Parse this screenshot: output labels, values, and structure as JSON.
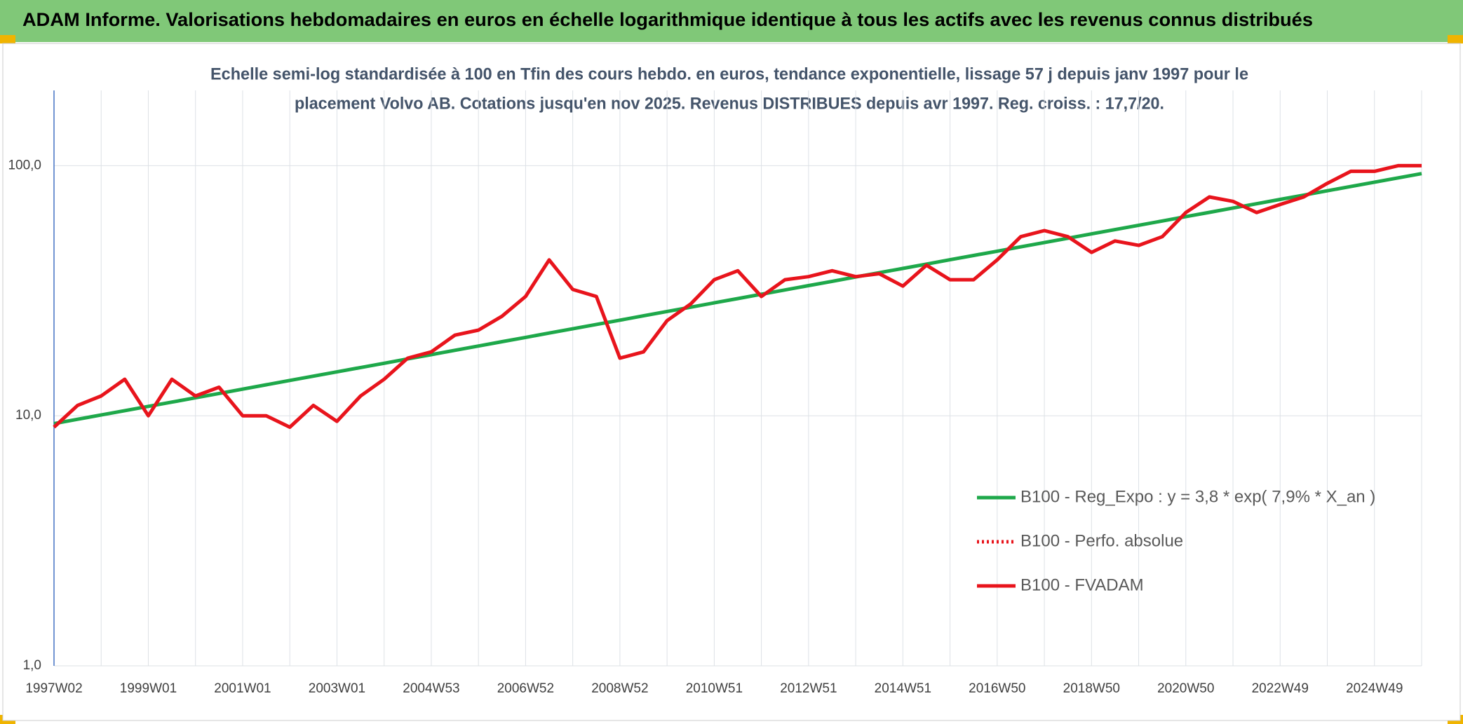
{
  "chart_data": {
    "type": "line",
    "title": "ADAM Informe. Valorisations hebdomadaires en euros en échelle logarithmique identique à tous les actifs avec les revenus connus distribués",
    "subtitle": [
      "Echelle semi-log standardisée à 100 en Tfin des cours hebdo. en euros, tendance exponentielle, lissage 57 j depuis janv 1997 pour le",
      "placement Volvo AB. Cotations jusqu'en nov 2025. Revenus DISTRIBUES depuis avr 1997. Reg. croiss. : 17,7/20."
    ],
    "categories": [
      "1997W02",
      null,
      null,
      null,
      "1999W01",
      null,
      null,
      null,
      "2001W01",
      null,
      null,
      null,
      "2003W01",
      null,
      null,
      null,
      "2004W53",
      null,
      null,
      null,
      "2006W52",
      null,
      null,
      null,
      "2008W52",
      null,
      null,
      null,
      "2010W51",
      null,
      null,
      null,
      "2012W51",
      null,
      null,
      null,
      "2014W51",
      null,
      null,
      null,
      "2016W50",
      null,
      null,
      null,
      "2018W50",
      null,
      null,
      null,
      "2020W50",
      null,
      null,
      null,
      "2022W49",
      null,
      null,
      null,
      "2024W49",
      null,
      null
    ],
    "series": [
      {
        "name": "B100 - Reg_Expo : y = 3,8 * exp( 7,9% *  X_an )",
        "color": "#1ea84a",
        "style": "solid",
        "values": [
          9.3,
          9.68,
          10.07,
          10.48,
          10.9,
          11.34,
          11.8,
          12.28,
          12.78,
          13.3,
          13.84,
          14.4,
          14.98,
          15.59,
          16.22,
          16.88,
          17.56,
          18.27,
          19.01,
          19.78,
          20.58,
          21.41,
          22.28,
          23.18,
          24.12,
          25.1,
          26.12,
          27.18,
          28.28,
          29.42,
          30.61,
          31.85,
          33.14,
          34.48,
          35.88,
          37.33,
          38.84,
          40.41,
          42.05,
          43.75,
          45.52,
          47.36,
          49.28,
          51.28,
          53.36,
          55.52,
          57.77,
          60.11,
          62.54,
          65.07,
          67.71,
          70.45,
          73.3,
          76.27,
          79.36,
          82.57,
          85.91,
          89.39,
          93.0
        ]
      },
      {
        "name": "B100 - Perfo. absolue",
        "color": "#e8141c",
        "style": "dotted",
        "values": [
          9,
          11,
          12,
          14,
          10,
          14,
          12,
          13,
          10,
          10,
          9,
          11,
          9.5,
          12,
          14,
          17,
          18,
          21,
          22,
          25,
          30,
          42,
          32,
          30,
          17,
          18,
          24,
          28,
          35,
          38,
          30,
          35,
          36,
          38,
          36,
          37,
          33,
          40,
          35,
          35,
          42,
          52,
          55,
          52,
          45,
          50,
          48,
          52,
          65,
          75,
          72,
          65,
          70,
          75,
          85,
          95,
          95,
          100,
          100
        ]
      },
      {
        "name": "B100 - FVADAM",
        "color": "#e8141c",
        "style": "solid",
        "values": [
          9,
          11,
          12,
          14,
          10,
          14,
          12,
          13,
          10,
          10,
          9,
          11,
          9.5,
          12,
          14,
          17,
          18,
          21,
          22,
          25,
          30,
          42,
          32,
          30,
          17,
          18,
          24,
          28,
          35,
          38,
          30,
          35,
          36,
          38,
          36,
          37,
          33,
          40,
          35,
          35,
          42,
          52,
          55,
          52,
          45,
          50,
          48,
          52,
          65,
          75,
          72,
          65,
          70,
          75,
          85,
          95,
          95,
          100,
          100
        ]
      }
    ],
    "log_scale": true,
    "ylim": [
      1,
      200
    ],
    "yticks": [
      {
        "value": 1,
        "label": "1,0"
      },
      {
        "value": 10,
        "label": "10,0"
      },
      {
        "value": 100,
        "label": "100,0"
      }
    ],
    "grid": true,
    "legend": "lower right"
  }
}
